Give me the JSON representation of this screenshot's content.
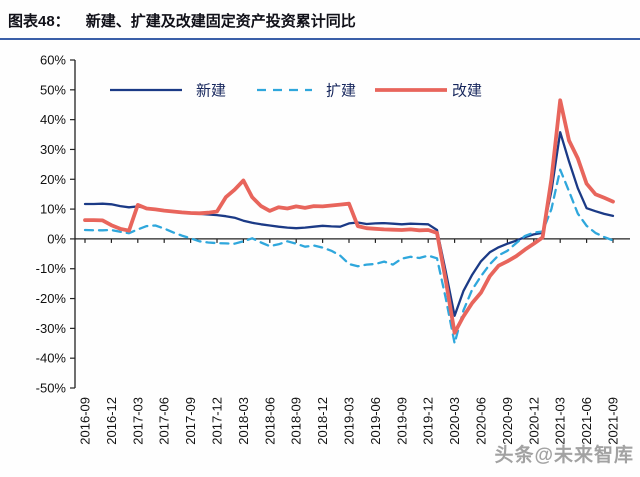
{
  "header": {
    "label": "图表48：",
    "title": "新建、扩建及改建固定资产投资累计同比"
  },
  "watermark": "头条@未来智库",
  "chart_data": {
    "type": "line",
    "title": "新建、扩建及改建固定资产投资累计同比",
    "xlabel": "",
    "ylabel": "",
    "ylim": [
      -50,
      60
    ],
    "y_tick_step": 10,
    "y_tick_format": "percent",
    "grid": false,
    "legend_position": "top",
    "x": [
      "2016-09",
      "2016-10",
      "2016-11",
      "2016-12",
      "2017-01",
      "2017-02",
      "2017-03",
      "2017-04",
      "2017-05",
      "2017-06",
      "2017-07",
      "2017-08",
      "2017-09",
      "2017-10",
      "2017-11",
      "2017-12",
      "2018-01",
      "2018-02",
      "2018-03",
      "2018-04",
      "2018-05",
      "2018-06",
      "2018-07",
      "2018-08",
      "2018-09",
      "2018-10",
      "2018-11",
      "2018-12",
      "2019-01",
      "2019-02",
      "2019-03",
      "2019-04",
      "2019-05",
      "2019-06",
      "2019-07",
      "2019-08",
      "2019-09",
      "2019-10",
      "2019-11",
      "2019-12",
      "2020-01",
      "2020-02",
      "2020-03",
      "2020-04",
      "2020-05",
      "2020-06",
      "2020-07",
      "2020-08",
      "2020-09",
      "2020-10",
      "2020-11",
      "2020-12",
      "2021-01",
      "2021-02",
      "2021-03",
      "2021-04",
      "2021-05",
      "2021-06",
      "2021-07",
      "2021-08",
      "2021-09"
    ],
    "x_tick_labels": [
      "2016-09",
      "2016-12",
      "2017-03",
      "2017-06",
      "2017-09",
      "2017-12",
      "2018-03",
      "2018-06",
      "2018-09",
      "2018-12",
      "2019-03",
      "2019-06",
      "2019-09",
      "2019-12",
      "2020-03",
      "2020-06",
      "2020-09",
      "2020-12",
      "2021-03",
      "2021-06",
      "2021-09"
    ],
    "series": [
      {
        "name": "新建",
        "key": "new-construction",
        "color": "#1b3a86",
        "style": "solid",
        "width": 2.3,
        "values": [
          11.7,
          11.7,
          11.8,
          11.6,
          11.0,
          10.6,
          10.9,
          10.3,
          9.8,
          9.4,
          9.1,
          8.8,
          8.6,
          8.4,
          8.2,
          8.0,
          7.6,
          7.1,
          6.1,
          5.4,
          4.9,
          4.5,
          4.1,
          3.8,
          3.6,
          3.8,
          4.1,
          4.4,
          4.2,
          4.1,
          5.2,
          5.5,
          5.0,
          5.2,
          5.3,
          5.1,
          4.9,
          5.1,
          5.0,
          4.9,
          3.0,
          -11.0,
          -25.8,
          -17.5,
          -12.0,
          -7.5,
          -4.5,
          -2.8,
          -1.6,
          -0.6,
          0.6,
          1.5,
          2.0,
          16.0,
          35.8,
          26.0,
          17.0,
          10.3,
          9.3,
          8.4,
          7.7
        ]
      },
      {
        "name": "扩建",
        "key": "expansion",
        "color": "#2fa7dc",
        "style": "dashed",
        "width": 2.3,
        "values": [
          3.0,
          2.9,
          2.9,
          3.0,
          2.4,
          1.9,
          3.2,
          4.3,
          4.5,
          3.5,
          2.2,
          1.1,
          0.2,
          -0.8,
          -1.2,
          -1.4,
          -1.5,
          -1.6,
          -0.8,
          0.2,
          -1.2,
          -2.4,
          -1.8,
          -0.8,
          -1.6,
          -2.6,
          -2.2,
          -2.9,
          -4.0,
          -5.6,
          -8.4,
          -9.2,
          -8.6,
          -8.4,
          -7.6,
          -8.6,
          -6.6,
          -6.0,
          -6.4,
          -5.6,
          -6.5,
          -20.0,
          -35.0,
          -24.0,
          -17.0,
          -12.5,
          -8.5,
          -5.5,
          -4.0,
          -1.4,
          1.0,
          2.1,
          2.5,
          10.0,
          23.2,
          16.0,
          8.5,
          4.4,
          2.0,
          0.6,
          -0.5
        ]
      },
      {
        "name": "改建",
        "key": "reconstruction",
        "color": "#e8655c",
        "style": "solid",
        "width": 3.8,
        "values": [
          6.3,
          6.3,
          6.2,
          4.6,
          3.4,
          2.8,
          11.4,
          10.2,
          9.9,
          9.5,
          9.2,
          8.9,
          8.7,
          8.6,
          8.8,
          9.2,
          14.0,
          16.5,
          19.6,
          14.0,
          11.0,
          9.4,
          10.6,
          10.2,
          10.9,
          10.4,
          11.0,
          10.9,
          11.2,
          11.5,
          11.8,
          4.3,
          3.6,
          3.4,
          3.2,
          3.1,
          3.0,
          3.2,
          2.9,
          3.0,
          2.0,
          -14.0,
          -31.5,
          -26.0,
          -21.5,
          -18.0,
          -12.5,
          -9.0,
          -7.5,
          -5.8,
          -3.6,
          -1.6,
          0.5,
          20.0,
          46.5,
          33.0,
          27.0,
          18.5,
          15.0,
          13.8,
          12.5
        ]
      }
    ]
  }
}
